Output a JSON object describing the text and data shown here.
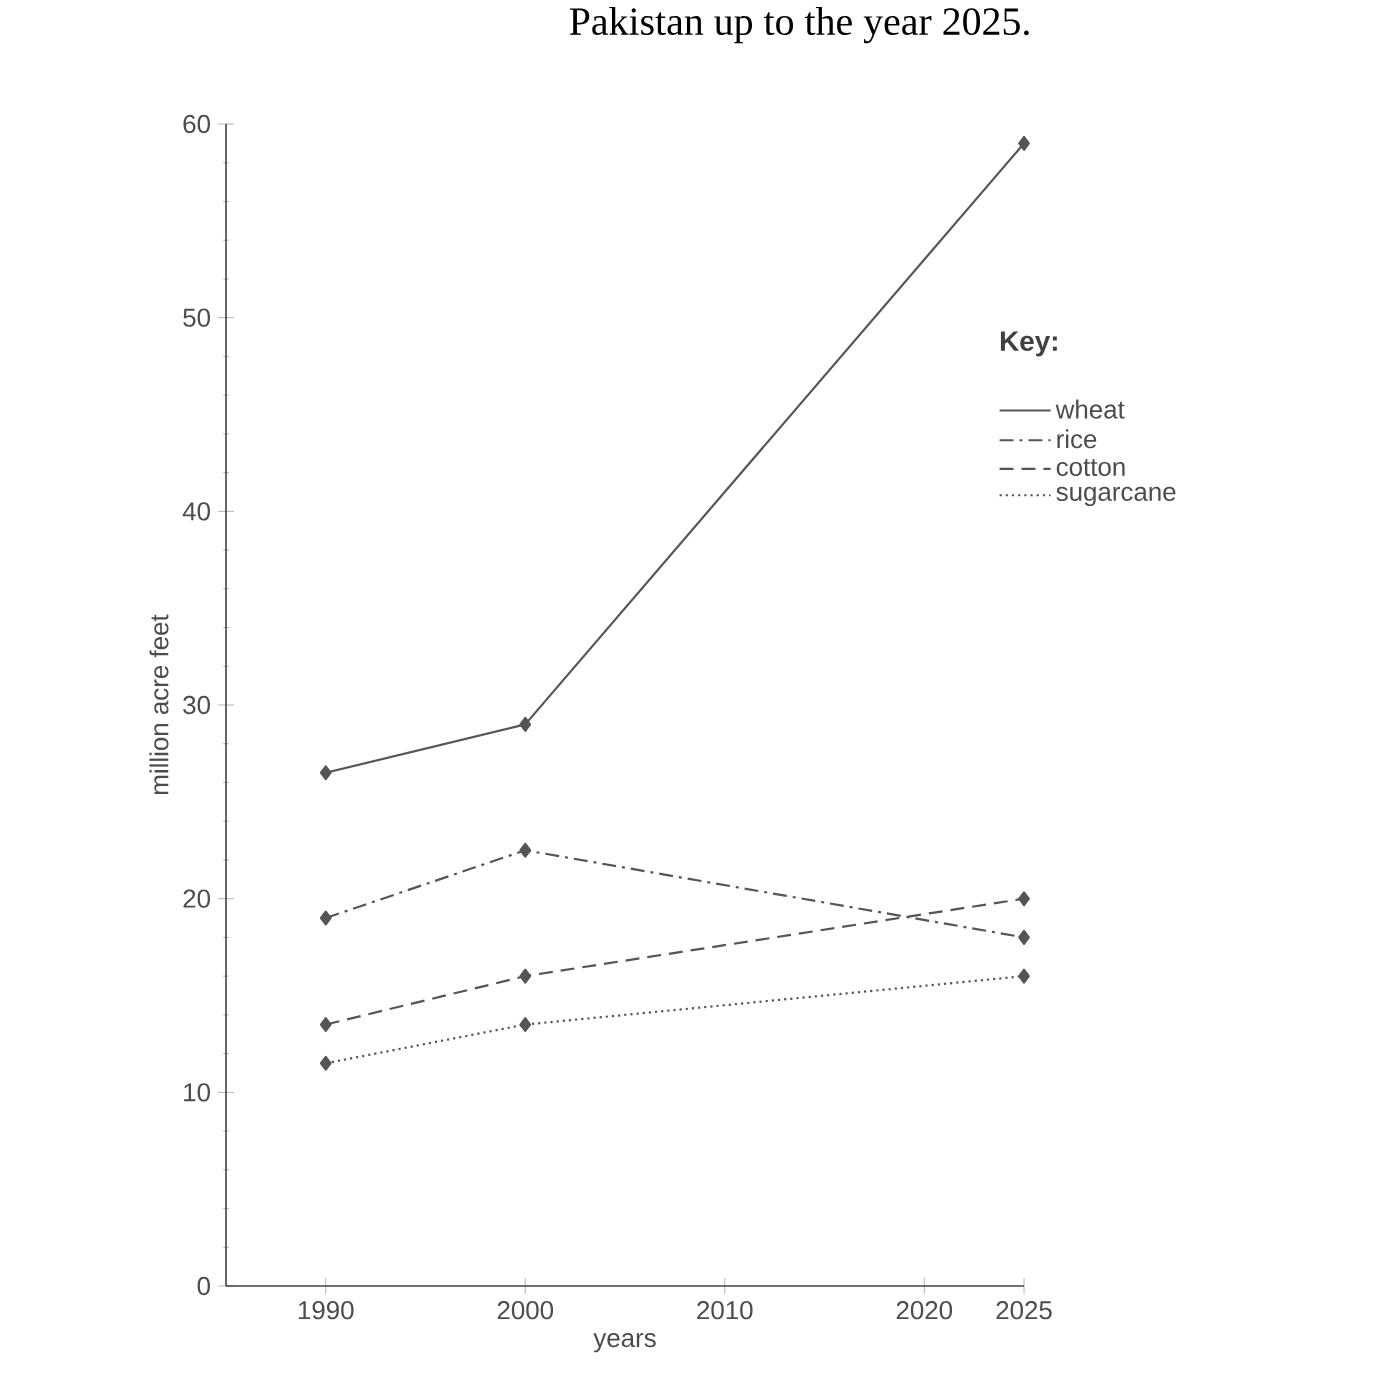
{
  "chart_data": {
    "type": "line",
    "title": "Pakistan up to the year 2025.",
    "xlabel": "years",
    "ylabel": "million acre feet",
    "legend_title": "Key:",
    "legend": "right",
    "marker": "diamond",
    "grid": false,
    "x": [
      1990,
      2000,
      2025
    ],
    "xlim": [
      1985,
      2025
    ],
    "xticks": [
      1990,
      2000,
      2010,
      2020,
      2025
    ],
    "ylim": [
      0,
      60
    ],
    "yticks": [
      0,
      10,
      20,
      30,
      40,
      50,
      60
    ],
    "series": [
      {
        "name": "wheat",
        "color": "#555555",
        "line_style": "solid",
        "values": [
          26.5,
          29,
          59
        ]
      },
      {
        "name": "rice",
        "color": "#555555",
        "line_style": "dashdot",
        "values": [
          19,
          22.5,
          18
        ]
      },
      {
        "name": "cotton",
        "color": "#555555",
        "line_style": "dashed",
        "values": [
          13.5,
          16,
          20
        ]
      },
      {
        "name": "sugarcane",
        "color": "#555555",
        "line_style": "dotted",
        "values": [
          11.5,
          13.5,
          16
        ]
      }
    ]
  }
}
